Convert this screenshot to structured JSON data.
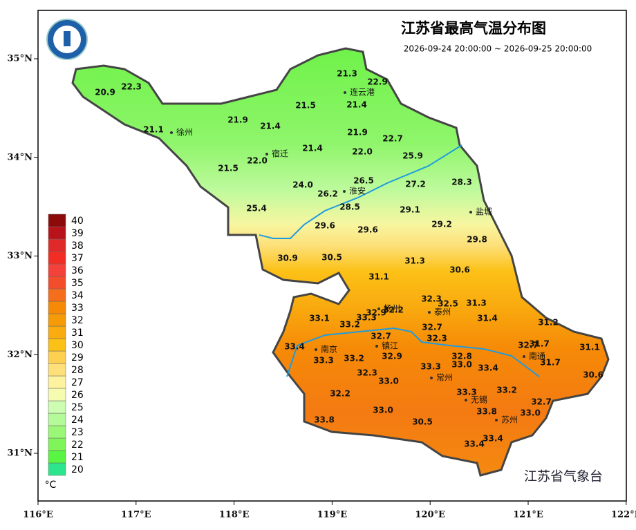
{
  "title": "江苏省最高气温分布图",
  "subtitle": "2026-09-24 20:00:00 ~ 2026-09-25 20:00:00",
  "agency": "江苏省气象台",
  "lon_ticks": [
    {
      "value": 116,
      "label": "116°E"
    },
    {
      "value": 117,
      "label": "117°E"
    },
    {
      "value": 118,
      "label": "118°E"
    },
    {
      "value": 119,
      "label": "119°E"
    },
    {
      "value": 120,
      "label": "120°E"
    },
    {
      "value": 121,
      "label": "121°E"
    },
    {
      "value": 122,
      "label": "122°E"
    }
  ],
  "lat_ticks": [
    {
      "value": 35,
      "label": "35°N"
    },
    {
      "value": 34,
      "label": "34°N"
    },
    {
      "value": 33,
      "label": "33°N"
    },
    {
      "value": 32,
      "label": "32°N"
    },
    {
      "value": 31,
      "label": "31°N"
    }
  ],
  "legend": {
    "unit": "°C",
    "levels": [
      {
        "value": 20,
        "color": "#2de58c"
      },
      {
        "value": 21,
        "color": "#59f542"
      },
      {
        "value": 22,
        "color": "#7ff55a"
      },
      {
        "value": 23,
        "color": "#9bf777"
      },
      {
        "value": 24,
        "color": "#b5fa98"
      },
      {
        "value": 25,
        "color": "#ccfdb0"
      },
      {
        "value": 26,
        "color": "#f5fcb0"
      },
      {
        "value": 27,
        "color": "#fdf29e"
      },
      {
        "value": 28,
        "color": "#fde07a"
      },
      {
        "value": 29,
        "color": "#fdd050"
      },
      {
        "value": 30,
        "color": "#fcc117"
      },
      {
        "value": 31,
        "color": "#f9ab0f"
      },
      {
        "value": 32,
        "color": "#f79a08"
      },
      {
        "value": 33,
        "color": "#f68a07"
      },
      {
        "value": 34,
        "color": "#f56e1c"
      },
      {
        "value": 35,
        "color": "#f44d2c"
      },
      {
        "value": 36,
        "color": "#f4413a"
      },
      {
        "value": 37,
        "color": "#f22e24"
      },
      {
        "value": 38,
        "color": "#e02a2a"
      },
      {
        "value": 39,
        "color": "#b8121a"
      },
      {
        "value": 40,
        "color": "#8c0a0a"
      }
    ]
  },
  "stations": [
    "20.9",
    "22.3",
    "21.3",
    "22.9",
    "21.5",
    "21.4",
    "21.9",
    "21.4",
    "21.1",
    "21.9",
    "22.7",
    "21.4",
    "22.0",
    "22.0",
    "25.9",
    "21.5",
    "24.0",
    "26.5",
    "27.2",
    "28.3",
    "26.2",
    "28.5",
    "25.4",
    "29.1",
    "29.6",
    "29.6",
    "29.2",
    "29.8",
    "30.9",
    "30.5",
    "31.3",
    "30.6",
    "31.1",
    "32.3",
    "32.5",
    "31.3",
    "33.1",
    "32.9",
    "32.2",
    "33.3",
    "33.2",
    "31.4",
    "31.2",
    "32.7",
    "32.7",
    "32.3",
    "33.4",
    "32.7",
    "31.7",
    "31.1",
    "33.3",
    "33.2",
    "32.9",
    "32.8",
    "33.3",
    "33.0",
    "33.4",
    "31.7",
    "32.3",
    "33.0",
    "30.6",
    "32.2",
    "33.3",
    "33.2",
    "32.7",
    "33.0",
    "33.0",
    "33.8",
    "33.8",
    "30.5",
    "33.4",
    "33.4"
  ],
  "cities": [
    "连云港",
    "徐州",
    "宿迁",
    "淮安",
    "盐城",
    "扬州",
    "泰州",
    "南京",
    "镇江",
    "常州",
    "南通",
    "无锡",
    "苏州"
  ]
}
